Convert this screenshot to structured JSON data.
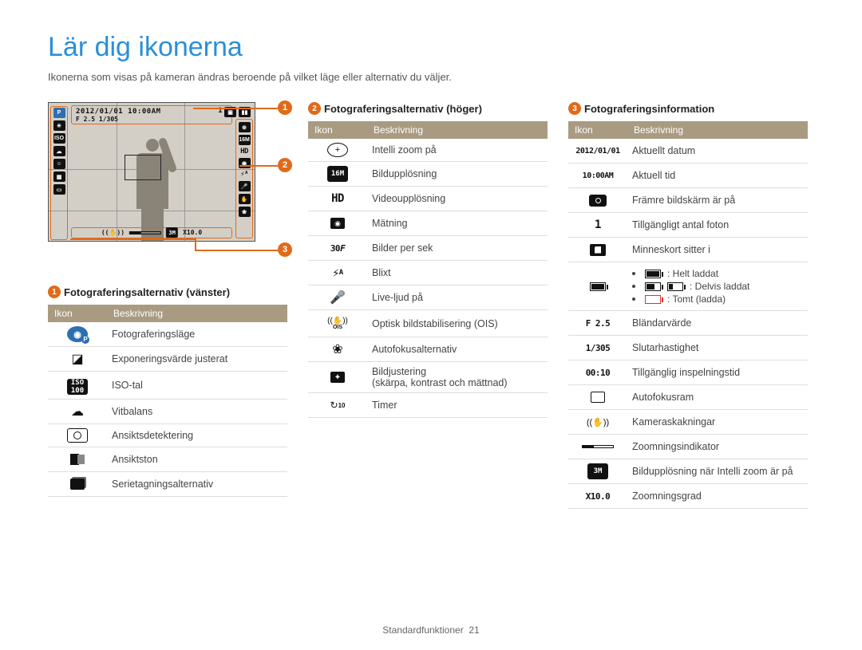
{
  "page": {
    "title": "Lär dig ikonerna",
    "intro": "Ikonerna som visas på kameran ändras beroende på vilket läge eller alternativ du väljer.",
    "footer_section": "Standardfunktioner",
    "footer_page": "21"
  },
  "colors": {
    "title": "#2a8fd8",
    "accent": "#e06a1a",
    "table_header_bg": "#a99b82",
    "table_header_fg": "#ffffff",
    "row_border": "#dddddd",
    "text": "#444444",
    "screen_bg": "#d3cfc7",
    "battery_empty": "#d33"
  },
  "callouts": {
    "c1": "1",
    "c2": "2",
    "c3": "3"
  },
  "screen": {
    "top_date": "2012/01/01  10:00AM",
    "top_line2": "F 2.5  1/305",
    "top_right_count": "1",
    "bottom_zoom": "X10.0",
    "bottom_res": "3M"
  },
  "table_headers": {
    "icon": "Ikon",
    "desc": "Beskrivning"
  },
  "sections": {
    "left": {
      "title": "Fotograferingsalternativ (vänster)",
      "rows": [
        {
          "icon": "mode-p",
          "desc": "Fotograferingsläge"
        },
        {
          "icon": "ev",
          "desc": "Exponeringsvärde justerat"
        },
        {
          "icon": "iso",
          "desc": "ISO-tal"
        },
        {
          "icon": "wb",
          "desc": "Vitbalans"
        },
        {
          "icon": "face",
          "desc": "Ansiktsdetektering"
        },
        {
          "icon": "facetone",
          "desc": "Ansiktston"
        },
        {
          "icon": "drive",
          "desc": "Serietagningsalternativ"
        }
      ]
    },
    "right": {
      "title": "Fotograferingsalternativ (höger)",
      "rows": [
        {
          "icon": "izoom",
          "desc": "Intelli zoom på"
        },
        {
          "icon": "res16m",
          "desc": "Bildupplösning"
        },
        {
          "icon": "hd",
          "desc": "Videoupplösning"
        },
        {
          "icon": "meter",
          "desc": "Mätning"
        },
        {
          "icon": "fps30",
          "desc": "Bilder per sek"
        },
        {
          "icon": "flash",
          "desc": "Blixt"
        },
        {
          "icon": "mic",
          "desc": "Live-ljud på"
        },
        {
          "icon": "ois",
          "desc": "Optisk bildstabilisering (OIS)"
        },
        {
          "icon": "macro",
          "desc": "Autofokusalternativ"
        },
        {
          "icon": "adjust",
          "desc": "Bildjustering",
          "desc2": "(skärpa, kontrast och mättnad)"
        },
        {
          "icon": "timer",
          "desc": "Timer"
        }
      ]
    },
    "info": {
      "title": "Fotograferingsinformation",
      "rows": [
        {
          "icon": "date",
          "icon_text": "2012/01/01",
          "desc": "Aktuellt datum"
        },
        {
          "icon": "time",
          "icon_text": "10:00AM",
          "desc": "Aktuell tid"
        },
        {
          "icon": "front",
          "desc": "Främre bildskärm är på"
        },
        {
          "icon": "count",
          "icon_text": "1",
          "desc": "Tillgängligt antal foton"
        },
        {
          "icon": "card",
          "desc": "Minneskort sitter i"
        },
        {
          "icon": "battery",
          "desc_lines": [
            ": Helt laddat",
            ": Delvis laddat",
            ": Tomt (ladda)"
          ]
        },
        {
          "icon": "fnum",
          "icon_text": "F 2.5",
          "desc": "Bländarvärde"
        },
        {
          "icon": "shutter",
          "icon_text": "1/305",
          "desc": "Slutarhastighet"
        },
        {
          "icon": "rectime",
          "icon_text": "00:10",
          "desc": "Tillgänglig inspelningstid"
        },
        {
          "icon": "afframe",
          "desc": "Autofokusram"
        },
        {
          "icon": "shake",
          "desc": "Kameraskakningar"
        },
        {
          "icon": "zoomind",
          "desc": "Zoomningsindikator"
        },
        {
          "icon": "res3m",
          "icon_text": "3M",
          "desc": "Bildupplösning när Intelli zoom är på"
        },
        {
          "icon": "zoomx",
          "icon_text": "X10.0",
          "desc": "Zoomningsgrad"
        }
      ]
    }
  }
}
